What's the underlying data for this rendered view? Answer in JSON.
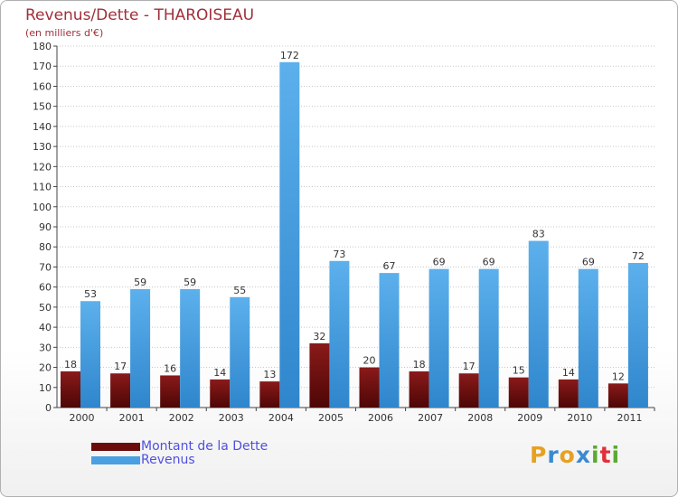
{
  "chart_data": {
    "type": "bar",
    "title": "Revenus/Dette - THAROISEAU",
    "subtitle": "(en milliers d'€)",
    "xlabel": "",
    "ylabel": "",
    "ylim": [
      0,
      180
    ],
    "yticks": [
      0,
      10,
      20,
      30,
      40,
      50,
      60,
      70,
      80,
      90,
      100,
      110,
      120,
      130,
      140,
      150,
      160,
      170,
      180
    ],
    "grid": true,
    "categories": [
      "2000",
      "2001",
      "2002",
      "2003",
      "2004",
      "2005",
      "2006",
      "2007",
      "2008",
      "2009",
      "2010",
      "2011"
    ],
    "series": [
      {
        "name": "Montant de la Dette",
        "color": "#7a1212",
        "values": [
          18,
          17,
          16,
          14,
          13,
          32,
          20,
          18,
          17,
          15,
          14,
          12
        ]
      },
      {
        "name": "Revenus",
        "color": "#4aa0e0",
        "values": [
          53,
          59,
          59,
          55,
          172,
          73,
          67,
          69,
          69,
          83,
          69,
          72
        ]
      }
    ]
  },
  "legend": {
    "items": [
      {
        "label": "Montant de la Dette",
        "color": "#6a0c0c"
      },
      {
        "label": "Revenus",
        "color": "#4aa0e0"
      }
    ]
  },
  "brand": {
    "letters": [
      "P",
      "r",
      "o",
      "x",
      "i",
      "t",
      "i"
    ],
    "colors": [
      "#e8a020",
      "#3a8ad0",
      "#e8a020",
      "#3a8ad0",
      "#5aaa30",
      "#e0303a",
      "#5aaa30"
    ]
  }
}
